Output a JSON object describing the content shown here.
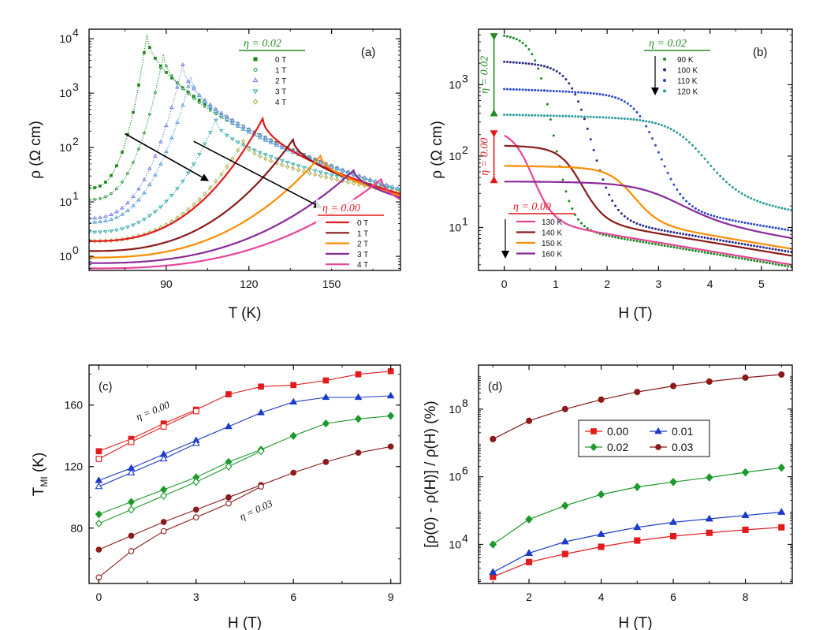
{
  "chart_data": [
    {
      "id": "a",
      "type": "line",
      "panel_label": "(a)",
      "xlabel": "T (K)",
      "ylabel": "ρ (Ω cm)",
      "xlim": [
        62,
        175
      ],
      "ylim_log": [
        0.55,
        15000
      ],
      "xticks": [
        {
          "v": 90,
          "t": "90"
        },
        {
          "v": 120,
          "t": "120"
        },
        {
          "v": 150,
          "t": "150"
        }
      ],
      "yticks": [
        {
          "e": 0
        },
        {
          "e": 1
        },
        {
          "e": 2
        },
        {
          "e": 3
        },
        {
          "e": 4
        }
      ],
      "legend_groups": [
        {
          "title": "η = 0.02",
          "color": "#228b22"
        },
        {
          "title": "η = 0.00",
          "color": "#e41a1c"
        }
      ],
      "series": [
        {
          "group": 0,
          "name": "0 T",
          "color": "#1a8a1a",
          "peakT": 83,
          "peakRho": 12000,
          "rhoLow": 18,
          "rhoHigh": 16,
          "marker": "sq"
        },
        {
          "group": 0,
          "name": "1 T",
          "color": "#2a9a3a",
          "peakT": 89,
          "peakRho": 5200,
          "rhoLow": 11,
          "rhoHigh": 16,
          "marker": "circle"
        },
        {
          "group": 0,
          "name": "2 T",
          "color": "#7b86e6",
          "peakT": 96,
          "peakRho": 3300,
          "rhoLow": 5,
          "rhoHigh": 17,
          "marker": "tri"
        },
        {
          "group": 0,
          "name": "2 T",
          "color": "#5aa0dd",
          "peakT": 99,
          "peakRho": 2000,
          "rhoLow": 4.2,
          "rhoHigh": 17,
          "marker": "tri"
        },
        {
          "group": 0,
          "name": "3 T",
          "color": "#3fb0b0",
          "peakT": 108,
          "peakRho": 320,
          "rhoLow": 2.8,
          "rhoHigh": 16,
          "marker": "tridown"
        },
        {
          "group": 0,
          "name": "4 T",
          "color": "#b0b050",
          "peakT": 118,
          "peakRho": 130,
          "rhoLow": 1.9,
          "rhoHigh": 15,
          "marker": "diamond"
        },
        {
          "group": 1,
          "name": "0 T",
          "color": "#e41a1c",
          "peakT": 125,
          "peakRho": 340,
          "rhoLow": 1.9,
          "rhoHigh": 14
        },
        {
          "group": 1,
          "name": "1 T",
          "color": "#8b1a1a",
          "peakT": 136,
          "peakRho": 140,
          "rhoLow": 1.25,
          "rhoHigh": 13
        },
        {
          "group": 1,
          "name": "2 T",
          "color": "#ff8c00",
          "peakT": 146,
          "peakRho": 70,
          "rhoLow": 0.95,
          "rhoHigh": 13
        },
        {
          "group": 1,
          "name": "3 T",
          "color": "#8b2a9a",
          "peakT": 158,
          "peakRho": 38,
          "rhoLow": 0.75,
          "rhoHigh": 12
        },
        {
          "group": 1,
          "name": "4 T",
          "color": "#e8449a",
          "peakT": 168,
          "peakRho": 26,
          "rhoLow": 0.6,
          "rhoHigh": 11
        }
      ],
      "arrows": [
        {
          "from": [
            75,
            180
          ],
          "to": [
            105,
            25
          ]
        },
        {
          "from": [
            100,
            130
          ],
          "to": [
            146,
            8
          ]
        }
      ]
    },
    {
      "id": "b",
      "type": "line",
      "panel_label": "(b)",
      "xlabel": "H (T)",
      "ylabel": "ρ (Ω cm)",
      "xlim": [
        -0.5,
        5.6
      ],
      "ylim_log": [
        2.5,
        6000
      ],
      "xticks": [
        {
          "v": 0,
          "t": "0"
        },
        {
          "v": 1,
          "t": "1"
        },
        {
          "v": 2,
          "t": "2"
        },
        {
          "v": 3,
          "t": "3"
        },
        {
          "v": 4,
          "t": "4"
        },
        {
          "v": 5,
          "t": "5"
        }
      ],
      "yticks": [
        {
          "e": 1
        },
        {
          "e": 2
        },
        {
          "e": 3
        }
      ],
      "legend_groups": [
        {
          "title": "η = 0.02",
          "color": "#228b22"
        },
        {
          "title": "η = 0.00",
          "color": "#e41a1c"
        }
      ],
      "side_labels": [
        {
          "text": "η = 0.02",
          "color": "#228b22"
        },
        {
          "text": "η = 0.00",
          "color": "#e41a1c"
        }
      ],
      "series": [
        {
          "group": 0,
          "name": "90 K",
          "color": "#1a8a1a",
          "rho0": 5000,
          "Hc": 0.95,
          "width": 0.18,
          "tailRho": 2.8,
          "dotted": true
        },
        {
          "group": 0,
          "name": "100 K",
          "color": "#2a2a8a",
          "rho0": 2100,
          "Hc": 1.7,
          "width": 0.22,
          "tailRho": 4.5,
          "dotted": true
        },
        {
          "group": 0,
          "name": "110 K",
          "color": "#2a4acc",
          "rho0": 870,
          "Hc": 3.0,
          "width": 0.25,
          "tailRho": 9,
          "dotted": true
        },
        {
          "group": 0,
          "name": "120 K",
          "color": "#2a9a9a",
          "rho0": 380,
          "Hc": 3.9,
          "width": 0.35,
          "tailRho": 17,
          "dotted": true
        },
        {
          "group": 1,
          "name": "130 K",
          "color": "#e8449a",
          "rho0": 230,
          "Hc": 0.55,
          "width": 0.2,
          "tailRho": 3
        },
        {
          "group": 1,
          "name": "140 K",
          "color": "#8b1a1a",
          "rho0": 140,
          "Hc": 1.5,
          "width": 0.22,
          "tailRho": 4
        },
        {
          "group": 1,
          "name": "150 K",
          "color": "#ff8c00",
          "rho0": 73,
          "Hc": 2.5,
          "width": 0.25,
          "tailRho": 5
        },
        {
          "group": 1,
          "name": "160 K",
          "color": "#8b2a9a",
          "rho0": 44,
          "Hc": 3.3,
          "width": 0.45,
          "tailRho": 7
        }
      ]
    },
    {
      "id": "c",
      "type": "line",
      "panel_label": "(c)",
      "xlabel": "H (T)",
      "ylabel": "T",
      "ylabel_sub": "MI",
      "ylabel_unit": " (K)",
      "xlim": [
        -0.3,
        9.3
      ],
      "ylim": [
        44,
        186
      ],
      "xticks": [
        {
          "v": 0,
          "t": "0"
        },
        {
          "v": 3,
          "t": "3"
        },
        {
          "v": 6,
          "t": "6"
        },
        {
          "v": 9,
          "t": "9"
        }
      ],
      "yticks": [
        {
          "v": 80,
          "t": "80"
        },
        {
          "v": 120,
          "t": "120"
        },
        {
          "v": 160,
          "t": "160"
        }
      ],
      "annotations": [
        {
          "text": "η = 0.00",
          "x": 1.2,
          "y": 150,
          "angle": -22
        },
        {
          "text": "η = 0.03",
          "x": 4.4,
          "y": 85,
          "angle": -25
        }
      ],
      "series": [
        {
          "name": "0.00 filled",
          "color": "#e41a1c",
          "marker": "sq",
          "filled": true,
          "x": [
            0,
            1,
            2,
            3,
            4,
            5,
            6,
            7,
            8,
            9
          ],
          "y": [
            130,
            138,
            148,
            157,
            167,
            172,
            173,
            176,
            180,
            182
          ]
        },
        {
          "name": "0.00 open",
          "color": "#e41a1c",
          "marker": "sq",
          "filled": false,
          "x": [
            0,
            1,
            2,
            3
          ],
          "y": [
            125,
            136,
            146,
            156
          ]
        },
        {
          "name": "0.01 filled",
          "color": "#1a3acc",
          "marker": "tri",
          "filled": true,
          "x": [
            0,
            1,
            2,
            3,
            4,
            5,
            6,
            7,
            8,
            9
          ],
          "y": [
            111,
            119,
            128,
            137,
            146,
            155,
            162,
            165,
            165,
            166
          ]
        },
        {
          "name": "0.01 open",
          "color": "#1a3acc",
          "marker": "tri",
          "filled": false,
          "x": [
            0,
            1,
            2,
            3
          ],
          "y": [
            107,
            116,
            125,
            135
          ]
        },
        {
          "name": "0.02 filled",
          "color": "#1a9a2a",
          "marker": "diamond",
          "filled": true,
          "x": [
            0,
            1,
            2,
            3,
            4,
            5,
            6,
            7,
            8,
            9
          ],
          "y": [
            89,
            97,
            105,
            113,
            123,
            131,
            140,
            148,
            151,
            153
          ]
        },
        {
          "name": "0.02 open",
          "color": "#1a9a2a",
          "marker": "diamond",
          "filled": false,
          "x": [
            0,
            1,
            2,
            3,
            4,
            5
          ],
          "y": [
            83,
            92,
            101,
            110,
            120,
            130
          ]
        },
        {
          "name": "0.03 filled",
          "color": "#8b1a1a",
          "marker": "circle",
          "filled": true,
          "x": [
            0,
            1,
            2,
            3,
            4,
            5,
            6,
            7,
            8,
            9
          ],
          "y": [
            66,
            75,
            84,
            92,
            100,
            108,
            116,
            123,
            129,
            133
          ]
        },
        {
          "name": "0.03 open",
          "color": "#8b1a1a",
          "marker": "circle",
          "filled": false,
          "x": [
            0,
            1,
            2,
            3,
            4,
            5
          ],
          "y": [
            48,
            65,
            78,
            87,
            96,
            107
          ]
        }
      ]
    },
    {
      "id": "d",
      "type": "line",
      "panel_label": "(d)",
      "xlabel": "H (T)",
      "ylabel": "[ρ(0) - ρ(H)] / ρ(H) (%)",
      "xlim": [
        0.6,
        9.3
      ],
      "ylim_log": [
        700,
        2000000000
      ],
      "xticks": [
        {
          "v": 2,
          "t": "2"
        },
        {
          "v": 4,
          "t": "4"
        },
        {
          "v": 6,
          "t": "6"
        },
        {
          "v": 8,
          "t": "8"
        }
      ],
      "yticks": [
        {
          "e": 4
        },
        {
          "e": 6
        },
        {
          "e": 8
        }
      ],
      "legend": [
        "0.00",
        "0.01",
        "0.02",
        "0.03"
      ],
      "series": [
        {
          "name": "0.00",
          "color": "#e41a1c",
          "marker": "sq",
          "x": [
            1,
            2,
            3,
            4,
            5,
            6,
            7,
            8,
            9
          ],
          "y": [
            1100,
            3000,
            5200,
            8500,
            13000,
            17500,
            22000,
            27000,
            32000
          ]
        },
        {
          "name": "0.01",
          "color": "#1a3acc",
          "marker": "tri",
          "x": [
            1,
            2,
            3,
            4,
            5,
            6,
            7,
            8,
            9
          ],
          "y": [
            1500,
            5500,
            12000,
            20000,
            32000,
            45000,
            57000,
            72000,
            90000
          ]
        },
        {
          "name": "0.02",
          "color": "#1a9a2a",
          "marker": "diamond",
          "x": [
            1,
            2,
            3,
            4,
            5,
            6,
            7,
            8,
            9
          ],
          "y": [
            10000,
            55000,
            140000,
            300000,
            500000,
            700000,
            950000,
            1350000,
            1850000
          ]
        },
        {
          "name": "0.03",
          "color": "#8b1a1a",
          "marker": "circle",
          "x": [
            1,
            2,
            3,
            4,
            5,
            6,
            7,
            8,
            9
          ],
          "y": [
            13000000,
            45000000,
            100000000,
            190000000,
            320000000,
            480000000,
            650000000,
            850000000,
            1050000000
          ]
        }
      ]
    }
  ]
}
